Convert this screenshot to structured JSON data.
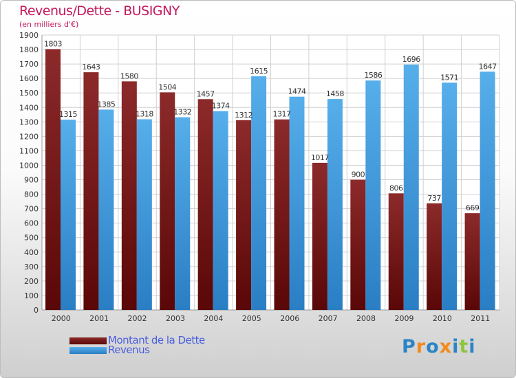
{
  "chart_data": {
    "type": "bar",
    "title": "Revenus/Dette - BUSIGNY",
    "subtitle": "(en milliers d'€)",
    "categories": [
      "2000",
      "2001",
      "2002",
      "2003",
      "2004",
      "2005",
      "2006",
      "2007",
      "2008",
      "2009",
      "2010",
      "2011"
    ],
    "series": [
      {
        "name": "Montant de la Dette",
        "values": [
          1803,
          1643,
          1580,
          1504,
          1457,
          1312,
          1317,
          1017,
          900,
          806,
          737,
          669
        ],
        "color": "#7a1c1c"
      },
      {
        "name": "Revenus",
        "values": [
          1315,
          1385,
          1318,
          1332,
          1374,
          1615,
          1474,
          1458,
          1586,
          1696,
          1571,
          1647
        ],
        "color": "#3d9be0"
      }
    ],
    "ylim": [
      0,
      1900
    ],
    "ytick_step": 100,
    "yticks": [
      0,
      100,
      200,
      300,
      400,
      500,
      600,
      700,
      800,
      900,
      1000,
      1100,
      1200,
      1300,
      1400,
      1500,
      1600,
      1700,
      1800,
      1900
    ],
    "grid": true,
    "legend": "bottom-left"
  },
  "logo": {
    "text": "Proxiti",
    "letters": [
      "P",
      "r",
      "o",
      "x",
      "i",
      "t",
      "i"
    ],
    "colors": [
      "#2b84c6",
      "#f28a1c",
      "#2b84c6",
      "#f28a1c",
      "#2b84c6",
      "#8cc63f",
      "#2b84c6"
    ]
  }
}
